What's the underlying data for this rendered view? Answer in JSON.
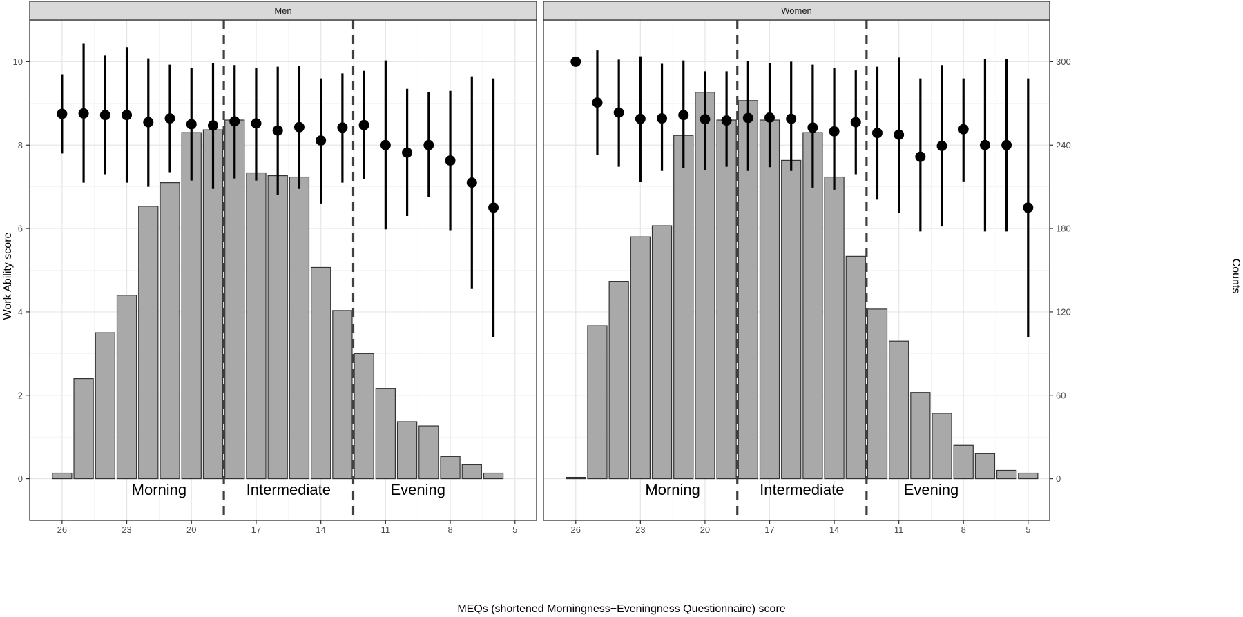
{
  "chart_data": {
    "type": "bar",
    "xlabel": "MEQs (shortened Morningness−Eveningness Questionnaire) score",
    "ylabel_left": "Work Ability score",
    "ylabel_right": "Counts",
    "x_ticks": [
      26,
      23,
      20,
      17,
      14,
      11,
      8,
      5
    ],
    "x_range_reversed": [
      27.5,
      4
    ],
    "y_left_ticks": [
      0,
      2,
      4,
      6,
      8,
      10
    ],
    "y_left_range": [
      -1,
      11
    ],
    "y_right_ticks": [
      0,
      60,
      120,
      180,
      240,
      300
    ],
    "y_right_range": [
      -30,
      330
    ],
    "cutoffs": [
      18.5,
      12.5
    ],
    "region_labels": [
      "Morning",
      "Intermediate",
      "Evening"
    ],
    "panels": [
      {
        "name": "Men",
        "x": [
          26,
          25,
          24,
          23,
          22,
          21,
          20,
          19,
          18,
          17,
          16,
          15,
          14,
          13,
          12,
          11,
          10,
          9,
          8,
          7,
          6
        ],
        "counts": [
          4,
          72,
          105,
          132,
          196,
          213,
          249,
          251,
          258,
          220,
          218,
          217,
          152,
          121,
          90,
          65,
          41,
          38,
          16,
          10,
          4
        ],
        "score_x": [
          26,
          25,
          24,
          23,
          22,
          21,
          20,
          19,
          18,
          17,
          16,
          15,
          14,
          13,
          12,
          11,
          10,
          9,
          8,
          7,
          6
        ],
        "score_mean": [
          8.75,
          8.76,
          8.72,
          8.72,
          8.55,
          8.64,
          8.5,
          8.47,
          8.57,
          8.52,
          8.35,
          8.43,
          8.11,
          8.42,
          8.48,
          8.0,
          7.82,
          8.0,
          7.63,
          7.1,
          6.5
        ],
        "score_lower": [
          7.8,
          7.1,
          7.3,
          7.1,
          7.0,
          7.35,
          7.15,
          6.95,
          7.2,
          7.15,
          6.8,
          6.95,
          6.6,
          7.1,
          7.18,
          5.98,
          6.3,
          6.75,
          5.96,
          4.55,
          3.4
        ],
        "score_upper": [
          9.7,
          10.43,
          10.15,
          10.35,
          10.08,
          9.93,
          9.85,
          9.97,
          9.92,
          9.85,
          9.88,
          9.9,
          9.6,
          9.72,
          9.78,
          10.03,
          9.35,
          9.27,
          9.3,
          9.65,
          9.6
        ]
      },
      {
        "name": "Women",
        "x": [
          26,
          25,
          24,
          23,
          22,
          21,
          20,
          19,
          18,
          17,
          16,
          15,
          14,
          13,
          12,
          11,
          10,
          9,
          8,
          7,
          6,
          5
        ],
        "counts": [
          1,
          110,
          142,
          174,
          182,
          247,
          278,
          258,
          272,
          258,
          229,
          249,
          217,
          160,
          122,
          99,
          62,
          47,
          24,
          18,
          6,
          4
        ],
        "score_x": [
          26,
          25,
          24,
          23,
          22,
          21,
          20,
          19,
          18,
          17,
          16,
          15,
          14,
          13,
          12,
          11,
          10,
          9,
          8,
          7,
          6,
          5
        ],
        "score_mean": [
          10.0,
          9.02,
          8.78,
          8.63,
          8.64,
          8.72,
          8.62,
          8.59,
          8.65,
          8.66,
          8.63,
          8.42,
          8.33,
          8.55,
          8.29,
          8.25,
          7.72,
          7.98,
          8.38,
          8.0,
          8.0,
          6.5
        ],
        "score_lower": [
          10.0,
          7.77,
          7.48,
          7.11,
          7.38,
          7.45,
          7.4,
          7.48,
          7.38,
          7.47,
          7.38,
          6.98,
          6.93,
          7.3,
          6.69,
          6.37,
          5.93,
          6.05,
          7.13,
          5.93,
          5.93,
          3.39
        ],
        "score_upper": [
          10.0,
          10.27,
          10.05,
          10.13,
          9.95,
          10.03,
          9.77,
          9.77,
          10.02,
          9.96,
          10.0,
          9.93,
          9.85,
          9.79,
          9.88,
          10.1,
          9.6,
          9.92,
          9.6,
          10.07,
          10.07,
          9.6
        ]
      }
    ]
  }
}
